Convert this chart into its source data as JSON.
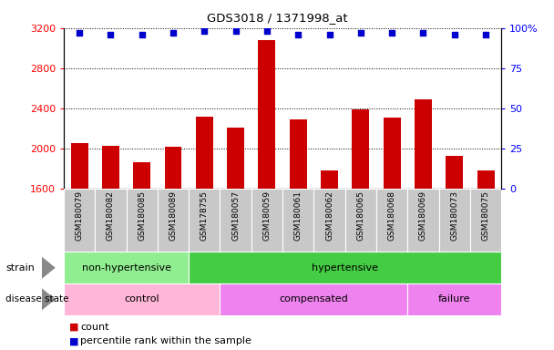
{
  "title": "GDS3018 / 1371998_at",
  "samples": [
    "GSM180079",
    "GSM180082",
    "GSM180085",
    "GSM180089",
    "GSM178755",
    "GSM180057",
    "GSM180059",
    "GSM180061",
    "GSM180062",
    "GSM180065",
    "GSM180068",
    "GSM180069",
    "GSM180073",
    "GSM180075"
  ],
  "counts": [
    2060,
    2030,
    1870,
    2020,
    2320,
    2210,
    3080,
    2290,
    1780,
    2390,
    2310,
    2490,
    1930,
    1780
  ],
  "percentiles": [
    97,
    96,
    96,
    97,
    98,
    98,
    98,
    96,
    96,
    97,
    97,
    97,
    96,
    96
  ],
  "ylim_left": [
    1600,
    3200
  ],
  "ylim_right": [
    0,
    100
  ],
  "yticks_left": [
    1600,
    2000,
    2400,
    2800,
    3200
  ],
  "yticks_right": [
    0,
    25,
    50,
    75,
    100
  ],
  "bar_color": "#cc0000",
  "dot_color": "#0000cc",
  "strain_groups": [
    {
      "label": "non-hypertensive",
      "start": 0,
      "end": 4,
      "color": "#90ee90"
    },
    {
      "label": "hypertensive",
      "start": 4,
      "end": 14,
      "color": "#44cc44"
    }
  ],
  "disease_groups": [
    {
      "label": "control",
      "start": 0,
      "end": 5,
      "color": "#ffb6d9"
    },
    {
      "label": "compensated",
      "start": 5,
      "end": 11,
      "color": "#ee82ee"
    },
    {
      "label": "failure",
      "start": 11,
      "end": 14,
      "color": "#ee82ee"
    }
  ],
  "legend_count_color": "#cc0000",
  "legend_dot_color": "#0000cc",
  "tick_bg_color": "#c8c8c8"
}
